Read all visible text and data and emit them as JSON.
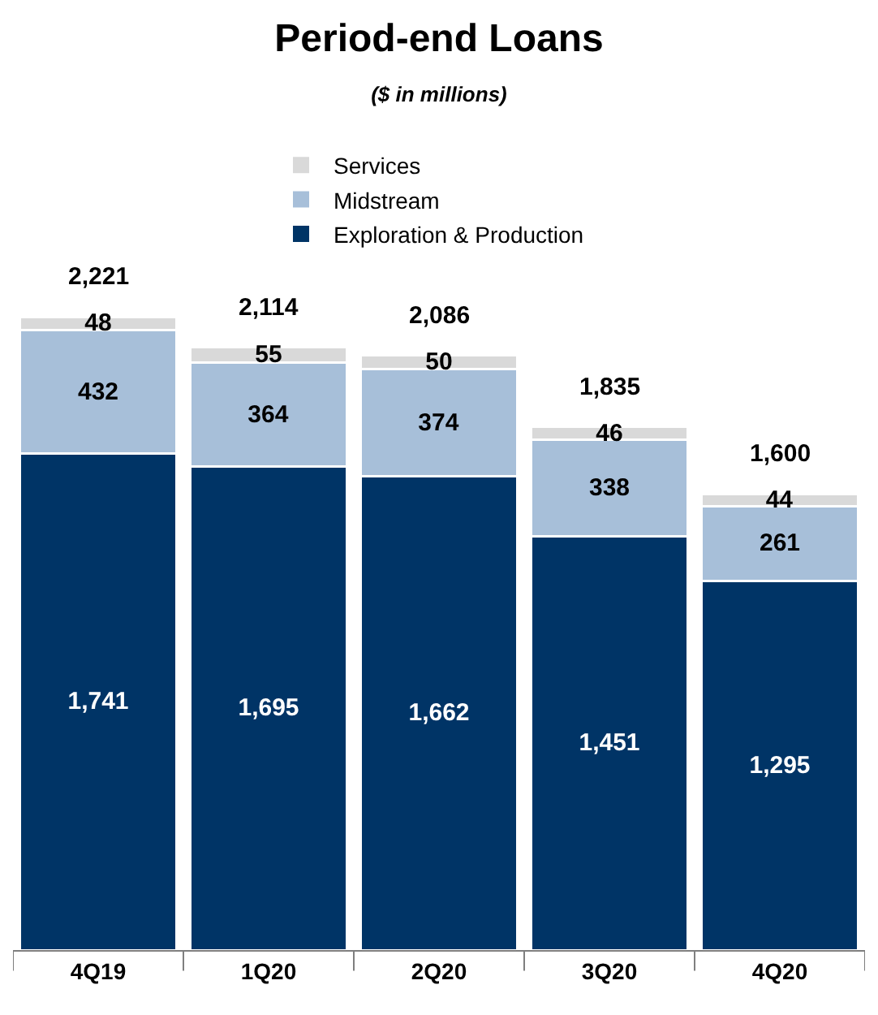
{
  "chart_data": {
    "type": "bar",
    "title": "Period-end Loans",
    "subtitle": "($ in millions)",
    "categories": [
      "4Q19",
      "1Q20",
      "2Q20",
      "3Q20",
      "4Q20"
    ],
    "stacked": true,
    "legend": "top",
    "series": [
      {
        "name": "Exploration & Production",
        "color": "#003466",
        "values": [
          1741,
          1695,
          1662,
          1451,
          1295
        ],
        "value_labels": [
          "1,741",
          "1,695",
          "1,662",
          "1,451",
          "1,295"
        ]
      },
      {
        "name": "Midstream",
        "color": "#a7bfd9",
        "values": [
          432,
          364,
          374,
          338,
          261
        ],
        "value_labels": [
          "432",
          "364",
          "374",
          "338",
          "261"
        ]
      },
      {
        "name": "Services",
        "color": "#d9d9d9",
        "values": [
          48,
          55,
          50,
          46,
          44
        ],
        "value_labels": [
          "48",
          "55",
          "50",
          "46",
          "44"
        ]
      }
    ],
    "totals": [
      "2,221",
      "2,114",
      "2,086",
      "1,835",
      "1,600"
    ]
  }
}
